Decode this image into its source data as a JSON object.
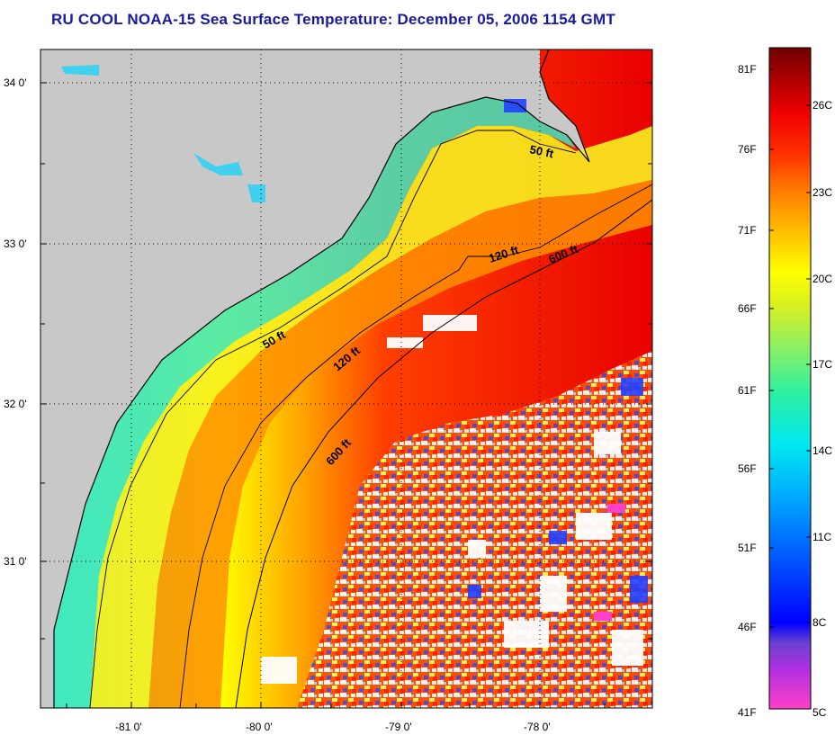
{
  "title": "RU COOL  NOAA-15  Sea Surface Temperature:  December 05, 2006 1154 GMT",
  "map": {
    "lat_ticks": [
      "34 0'",
      "33 0'",
      "32 0'",
      "31 0'"
    ],
    "lon_ticks": [
      "-81 0'",
      "-80 0'",
      "-79 0'",
      "-78 0'"
    ],
    "contour_labels": [
      "50 ft",
      "120 ft",
      "600 ft",
      "50 ft",
      "120 ft",
      "600 ft"
    ],
    "colors": {
      "land": "#c8c8c8",
      "coast": "#000000",
      "cloud": "#ffffff"
    }
  },
  "colorbar": {
    "fahrenheit_labels": [
      "81F",
      "76F",
      "71F",
      "66F",
      "61F",
      "56F",
      "51F",
      "46F",
      "41F"
    ],
    "celsius_labels": [
      "26C",
      "23C",
      "20C",
      "17C",
      "14C",
      "11C",
      "8C",
      "5C"
    ],
    "stops": [
      "#ff40c8",
      "#b030e0",
      "#6a40d0",
      "#0000ff",
      "#0050ff",
      "#00a0ff",
      "#00e8f0",
      "#30f0a0",
      "#90f060",
      "#d8f020",
      "#ffff00",
      "#ffc000",
      "#ff8000",
      "#ff3000",
      "#f00000",
      "#b00000",
      "#700000"
    ]
  }
}
